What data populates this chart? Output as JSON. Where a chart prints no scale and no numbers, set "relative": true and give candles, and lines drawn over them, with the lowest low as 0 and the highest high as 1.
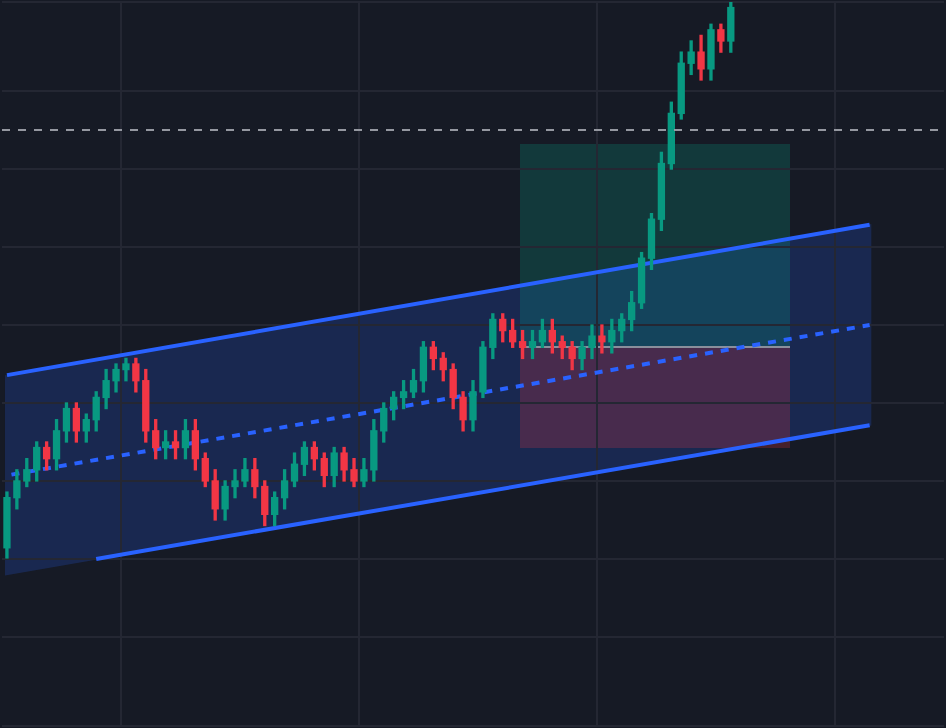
{
  "chart_data": {
    "type": "candlestick",
    "relative": true,
    "grid": true,
    "tick_labels": false,
    "legend": false,
    "categories": [
      null,
      null,
      null,
      null,
      null,
      null,
      null,
      null,
      null,
      null,
      null,
      null,
      null,
      null,
      null,
      null,
      null,
      null,
      null,
      null,
      null,
      null,
      null,
      null,
      null,
      null,
      null,
      null,
      null,
      null,
      null,
      null,
      null,
      null,
      null,
      null,
      null,
      null,
      null,
      null,
      null,
      null,
      null,
      null,
      null,
      null,
      null,
      null,
      null,
      null,
      null,
      null,
      null,
      null,
      null,
      null,
      null,
      null,
      null,
      null,
      null,
      null,
      null,
      null,
      null,
      null,
      null,
      null,
      null,
      null,
      null,
      null,
      null,
      null,
      null,
      null,
      null,
      null,
      null,
      null,
      null,
      null,
      null,
      null,
      null,
      null,
      null,
      null,
      null,
      null,
      null,
      null,
      null,
      null,
      null
    ],
    "ohlc": [
      [
        0.02,
        0.12,
        0,
        0.11
      ],
      [
        0.11,
        0.16,
        0.09,
        0.14
      ],
      [
        0.14,
        0.18,
        0.13,
        0.16
      ],
      [
        0.16,
        0.21,
        0.14,
        0.2
      ],
      [
        0.2,
        0.21,
        0.16,
        0.18
      ],
      [
        0.18,
        0.25,
        0.16,
        0.23
      ],
      [
        0.23,
        0.28,
        0.21,
        0.27
      ],
      [
        0.27,
        0.28,
        0.21,
        0.23
      ],
      [
        0.23,
        0.26,
        0.21,
        0.25
      ],
      [
        0.25,
        0.3,
        0.23,
        0.29
      ],
      [
        0.29,
        0.34,
        0.27,
        0.32
      ],
      [
        0.32,
        0.35,
        0.3,
        0.34
      ],
      [
        0.34,
        0.36,
        0.32,
        0.35
      ],
      [
        0.35,
        0.36,
        0.3,
        0.32
      ],
      [
        0.32,
        0.34,
        0.21,
        0.23
      ],
      [
        0.23,
        0.25,
        0.18,
        0.2
      ],
      [
        0.2,
        0.23,
        0.18,
        0.21
      ],
      [
        0.21,
        0.23,
        0.18,
        0.2
      ],
      [
        0.2,
        0.25,
        0.18,
        0.23
      ],
      [
        0.23,
        0.25,
        0.16,
        0.18
      ],
      [
        0.18,
        0.19,
        0.13,
        0.14
      ],
      [
        0.14,
        0.16,
        0.07,
        0.09
      ],
      [
        0.09,
        0.14,
        0.07,
        0.13
      ],
      [
        0.13,
        0.16,
        0.11,
        0.14
      ],
      [
        0.14,
        0.18,
        0.13,
        0.16
      ],
      [
        0.16,
        0.18,
        0.11,
        0.13
      ],
      [
        0.13,
        0.14,
        0.06,
        0.08
      ],
      [
        0.08,
        0.12,
        0.06,
        0.11
      ],
      [
        0.11,
        0.16,
        0.09,
        0.14
      ],
      [
        0.14,
        0.19,
        0.13,
        0.17
      ],
      [
        0.17,
        0.21,
        0.15,
        0.2
      ],
      [
        0.2,
        0.21,
        0.16,
        0.18
      ],
      [
        0.18,
        0.19,
        0.13,
        0.15
      ],
      [
        0.15,
        0.2,
        0.13,
        0.19
      ],
      [
        0.19,
        0.2,
        0.14,
        0.16
      ],
      [
        0.16,
        0.18,
        0.13,
        0.14
      ],
      [
        0.14,
        0.18,
        0.13,
        0.16
      ],
      [
        0.16,
        0.25,
        0.14,
        0.23
      ],
      [
        0.23,
        0.28,
        0.21,
        0.27
      ],
      [
        0.27,
        0.3,
        0.25,
        0.29
      ],
      [
        0.29,
        0.32,
        0.27,
        0.3
      ],
      [
        0.3,
        0.34,
        0.29,
        0.32
      ],
      [
        0.32,
        0.39,
        0.3,
        0.38
      ],
      [
        0.38,
        0.39,
        0.34,
        0.36
      ],
      [
        0.36,
        0.37,
        0.32,
        0.34
      ],
      [
        0.34,
        0.35,
        0.27,
        0.29
      ],
      [
        0.29,
        0.3,
        0.23,
        0.25
      ],
      [
        0.25,
        0.32,
        0.23,
        0.3
      ],
      [
        0.3,
        0.39,
        0.29,
        0.38
      ],
      [
        0.38,
        0.44,
        0.36,
        0.43
      ],
      [
        0.43,
        0.44,
        0.39,
        0.41
      ],
      [
        0.41,
        0.43,
        0.38,
        0.39
      ],
      [
        0.39,
        0.41,
        0.36,
        0.38
      ],
      [
        0.38,
        0.41,
        0.36,
        0.39
      ],
      [
        0.39,
        0.43,
        0.38,
        0.41
      ],
      [
        0.41,
        0.43,
        0.37,
        0.39
      ],
      [
        0.39,
        0.4,
        0.36,
        0.38
      ],
      [
        0.38,
        0.39,
        0.34,
        0.36
      ],
      [
        0.36,
        0.39,
        0.34,
        0.38
      ],
      [
        0.38,
        0.42,
        0.36,
        0.4
      ],
      [
        0.4,
        0.42,
        0.37,
        0.39
      ],
      [
        0.39,
        0.43,
        0.37,
        0.41
      ],
      [
        0.41,
        0.44,
        0.39,
        0.43
      ],
      [
        0.43,
        0.48,
        0.41,
        0.46
      ],
      [
        0.46,
        0.55,
        0.45,
        0.54
      ],
      [
        0.54,
        0.62,
        0.52,
        0.61
      ],
      [
        0.61,
        0.73,
        0.59,
        0.71
      ],
      [
        0.71,
        0.82,
        0.7,
        0.8
      ],
      [
        0.8,
        0.91,
        0.79,
        0.89
      ],
      [
        0.89,
        0.93,
        0.87,
        0.91
      ],
      [
        0.91,
        0.94,
        0.86,
        0.88
      ],
      [
        0.88,
        0.96,
        0.86,
        0.95
      ],
      [
        0.95,
        0.96,
        0.91,
        0.93
      ],
      [
        0.93,
        1,
        0.91,
        0.99
      ],
      null,
      null,
      null,
      null,
      null,
      null,
      null,
      null,
      null,
      null,
      null,
      null,
      null,
      null,
      null,
      null,
      null,
      null,
      null,
      null,
      null
    ],
    "series": [
      {
        "type": "line",
        "color": "#2962ff",
        "line_style": "solid",
        "values": [
          0.33,
          null,
          null,
          null,
          null,
          null,
          null,
          null,
          null,
          null,
          null,
          null,
          null,
          null,
          null,
          null,
          null,
          null,
          null,
          null,
          null,
          null,
          null,
          null,
          null,
          null,
          null,
          null,
          null,
          null,
          null,
          null,
          null,
          null,
          null,
          null,
          null,
          null,
          null,
          null,
          null,
          null,
          null,
          null,
          null,
          null,
          null,
          null,
          null,
          null,
          null,
          null,
          null,
          null,
          null,
          null,
          null,
          null,
          null,
          null,
          null,
          null,
          null,
          null,
          null,
          null,
          null,
          null,
          null,
          null,
          null,
          null,
          null,
          null,
          null,
          null,
          null,
          null,
          null,
          null,
          null,
          null,
          null,
          null,
          null,
          null,
          null,
          0.6,
          null,
          null,
          null,
          null,
          null,
          null,
          null
        ]
      },
      {
        "type": "line",
        "color": "#2962ff",
        "line_style": "dashed",
        "values": [
          0.15,
          null,
          null,
          null,
          null,
          null,
          null,
          null,
          null,
          null,
          null,
          null,
          null,
          null,
          null,
          null,
          null,
          null,
          null,
          null,
          null,
          null,
          null,
          null,
          null,
          null,
          null,
          null,
          null,
          null,
          null,
          null,
          null,
          null,
          null,
          null,
          null,
          null,
          null,
          null,
          null,
          null,
          null,
          null,
          null,
          null,
          null,
          null,
          null,
          null,
          null,
          null,
          null,
          null,
          null,
          null,
          null,
          null,
          null,
          null,
          null,
          null,
          null,
          null,
          null,
          null,
          null,
          null,
          null,
          null,
          null,
          null,
          null,
          null,
          null,
          null,
          null,
          null,
          null,
          null,
          null,
          null,
          null,
          null,
          null,
          null,
          null,
          0.42,
          null,
          null,
          null,
          null,
          null,
          null,
          null
        ]
      },
      {
        "type": "line",
        "color": "#2962ff",
        "line_style": "solid",
        "values": [
          null,
          null,
          null,
          null,
          null,
          null,
          null,
          null,
          null,
          0,
          null,
          null,
          null,
          null,
          null,
          null,
          null,
          null,
          null,
          null,
          null,
          null,
          null,
          null,
          null,
          null,
          null,
          null,
          null,
          null,
          null,
          null,
          null,
          null,
          null,
          null,
          null,
          null,
          null,
          null,
          null,
          null,
          null,
          null,
          null,
          null,
          null,
          null,
          null,
          null,
          null,
          null,
          null,
          null,
          null,
          null,
          null,
          null,
          null,
          null,
          null,
          null,
          null,
          null,
          null,
          null,
          null,
          null,
          null,
          null,
          null,
          null,
          null,
          null,
          null,
          null,
          null,
          null,
          null,
          null,
          null,
          null,
          null,
          null,
          null,
          null,
          null,
          0.24,
          null,
          null,
          null,
          null,
          null,
          null,
          null
        ]
      }
    ],
    "ref_lines": [
      {
        "axis": "y",
        "value": 0.77,
        "color": "#9598a1",
        "line_style": "dashed"
      }
    ]
  }
}
